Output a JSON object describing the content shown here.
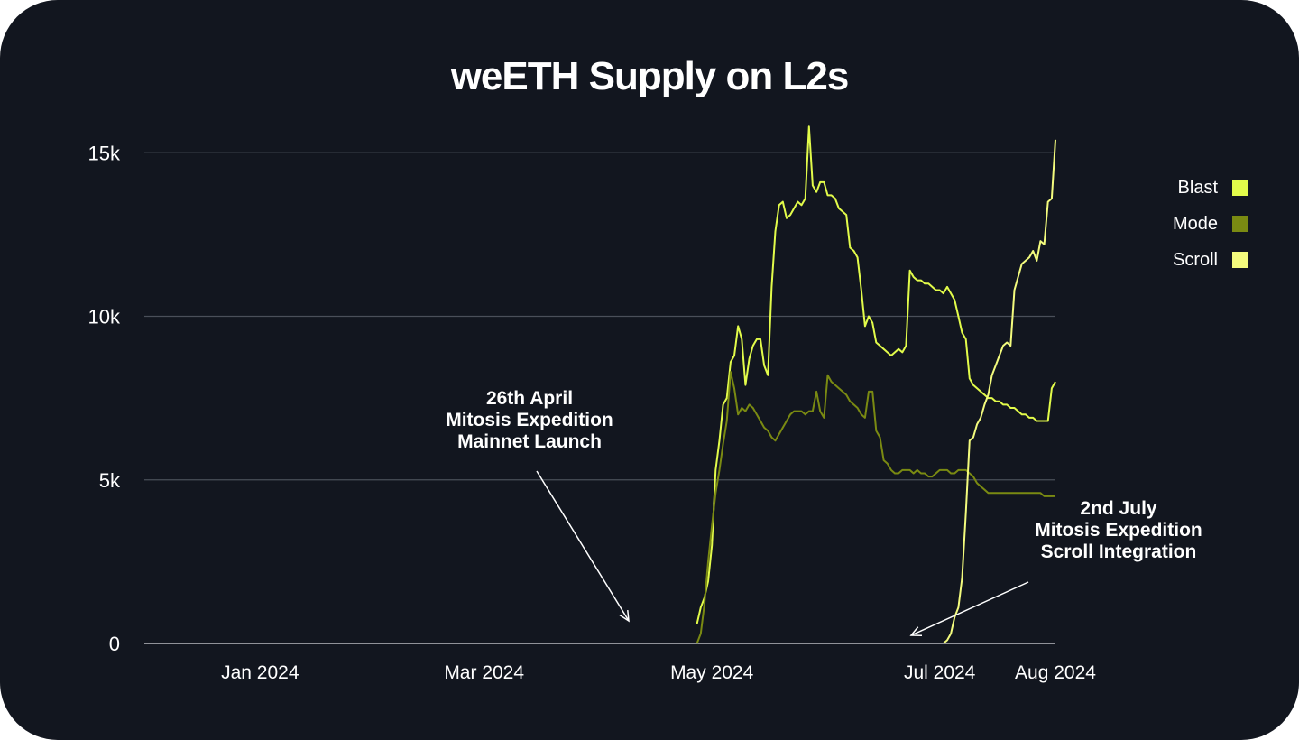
{
  "chart_data": {
    "type": "line",
    "title": "weETH Supply on L2s",
    "xlabel": "",
    "ylabel": "",
    "x_ticks": [
      "Jan 2024",
      "Mar 2024",
      "May 2024",
      "Jul 2024",
      "Aug 2024"
    ],
    "x_tick_dates": [
      "2024-01-01",
      "2024-03-01",
      "2024-05-01",
      "2024-07-01",
      "2024-08-01"
    ],
    "xlim": [
      "2023-12-01",
      "2024-08-01"
    ],
    "y_ticks": [
      0,
      5000,
      10000,
      15000
    ],
    "y_tick_labels": [
      "0",
      "5k",
      "10k",
      "15k"
    ],
    "ylim": [
      0,
      16000
    ],
    "grid": true,
    "legend_position": "top-right",
    "series": [
      {
        "name": "Blast",
        "color": "#e2fb4a",
        "x": [
          "2024-04-27",
          "2024-04-28",
          "2024-04-29",
          "2024-04-30",
          "2024-05-01",
          "2024-05-02",
          "2024-05-03",
          "2024-05-04",
          "2024-05-05",
          "2024-05-06",
          "2024-05-07",
          "2024-05-08",
          "2024-05-09",
          "2024-05-10",
          "2024-05-11",
          "2024-05-12",
          "2024-05-13",
          "2024-05-14",
          "2024-05-15",
          "2024-05-16",
          "2024-05-17",
          "2024-05-18",
          "2024-05-19",
          "2024-05-20",
          "2024-05-21",
          "2024-05-22",
          "2024-05-23",
          "2024-05-24",
          "2024-05-25",
          "2024-05-26",
          "2024-05-27",
          "2024-05-28",
          "2024-05-29",
          "2024-05-30",
          "2024-05-31",
          "2024-06-01",
          "2024-06-02",
          "2024-06-03",
          "2024-06-04",
          "2024-06-05",
          "2024-06-06",
          "2024-06-07",
          "2024-06-08",
          "2024-06-09",
          "2024-06-10",
          "2024-06-11",
          "2024-06-12",
          "2024-06-13",
          "2024-06-14",
          "2024-06-15",
          "2024-06-16",
          "2024-06-17",
          "2024-06-18",
          "2024-06-19",
          "2024-06-20",
          "2024-06-21",
          "2024-06-22",
          "2024-06-23",
          "2024-06-24",
          "2024-06-25",
          "2024-06-26",
          "2024-06-27",
          "2024-06-28",
          "2024-06-29",
          "2024-06-30",
          "2024-07-01",
          "2024-07-02",
          "2024-07-03",
          "2024-07-04",
          "2024-07-05",
          "2024-07-06",
          "2024-07-07",
          "2024-07-08",
          "2024-07-09",
          "2024-07-10",
          "2024-07-11",
          "2024-07-12",
          "2024-07-13",
          "2024-07-14",
          "2024-07-15",
          "2024-07-16",
          "2024-07-17",
          "2024-07-18",
          "2024-07-19",
          "2024-07-20",
          "2024-07-21",
          "2024-07-22",
          "2024-07-23",
          "2024-07-24",
          "2024-07-25",
          "2024-07-26",
          "2024-07-27",
          "2024-07-28",
          "2024-07-29",
          "2024-07-30",
          "2024-07-31",
          "2024-08-01"
        ],
        "values": [
          600,
          1100,
          1400,
          1900,
          3000,
          5300,
          6200,
          7300,
          7500,
          8600,
          8800,
          9700,
          9300,
          7900,
          8700,
          9100,
          9300,
          9300,
          8500,
          8200,
          10900,
          12600,
          13400,
          13500,
          13000,
          13100,
          13300,
          13500,
          13400,
          13600,
          15800,
          14000,
          13800,
          14100,
          14100,
          13700,
          13700,
          13600,
          13300,
          13200,
          13100,
          12100,
          12000,
          11800,
          10800,
          9700,
          10000,
          9800,
          9200,
          9100,
          9000,
          8900,
          8800,
          8900,
          9000,
          8900,
          9100,
          11400,
          11200,
          11100,
          11100,
          11000,
          11000,
          10900,
          10800,
          10800,
          10700,
          10900,
          10700,
          10500,
          10000,
          9500,
          9300,
          8100,
          7900,
          7800,
          7700,
          7600,
          7500,
          7500,
          7400,
          7400,
          7300,
          7300,
          7200,
          7200,
          7100,
          7000,
          7000,
          6900,
          6900,
          6800,
          6800,
          6800,
          6800,
          7800,
          8000
        ]
      },
      {
        "name": "Mode",
        "color": "#7a8a12",
        "x": [
          "2024-04-27",
          "2024-04-28",
          "2024-04-29",
          "2024-04-30",
          "2024-05-01",
          "2024-05-02",
          "2024-05-03",
          "2024-05-04",
          "2024-05-05",
          "2024-05-06",
          "2024-05-07",
          "2024-05-08",
          "2024-05-09",
          "2024-05-10",
          "2024-05-11",
          "2024-05-12",
          "2024-05-13",
          "2024-05-14",
          "2024-05-15",
          "2024-05-16",
          "2024-05-17",
          "2024-05-18",
          "2024-05-19",
          "2024-05-20",
          "2024-05-21",
          "2024-05-22",
          "2024-05-23",
          "2024-05-24",
          "2024-05-25",
          "2024-05-26",
          "2024-05-27",
          "2024-05-28",
          "2024-05-29",
          "2024-05-30",
          "2024-05-31",
          "2024-06-01",
          "2024-06-02",
          "2024-06-03",
          "2024-06-04",
          "2024-06-05",
          "2024-06-06",
          "2024-06-07",
          "2024-06-08",
          "2024-06-09",
          "2024-06-10",
          "2024-06-11",
          "2024-06-12",
          "2024-06-13",
          "2024-06-14",
          "2024-06-15",
          "2024-06-16",
          "2024-06-17",
          "2024-06-18",
          "2024-06-19",
          "2024-06-20",
          "2024-06-21",
          "2024-06-22",
          "2024-06-23",
          "2024-06-24",
          "2024-06-25",
          "2024-06-26",
          "2024-06-27",
          "2024-06-28",
          "2024-06-29",
          "2024-06-30",
          "2024-07-01",
          "2024-07-02",
          "2024-07-03",
          "2024-07-04",
          "2024-07-05",
          "2024-07-06",
          "2024-07-07",
          "2024-07-08",
          "2024-07-09",
          "2024-07-10",
          "2024-07-11",
          "2024-07-12",
          "2024-07-13",
          "2024-07-14",
          "2024-07-15",
          "2024-07-16",
          "2024-07-17",
          "2024-07-18",
          "2024-07-19",
          "2024-07-20",
          "2024-07-21",
          "2024-07-22",
          "2024-07-23",
          "2024-07-24",
          "2024-07-25",
          "2024-07-26",
          "2024-07-27",
          "2024-07-28",
          "2024-07-29",
          "2024-07-30",
          "2024-07-31",
          "2024-08-01"
        ],
        "values": [
          0,
          300,
          1200,
          2500,
          3600,
          4600,
          5300,
          6100,
          6800,
          8300,
          7800,
          7000,
          7200,
          7100,
          7300,
          7200,
          7000,
          6800,
          6600,
          6500,
          6300,
          6200,
          6400,
          6600,
          6800,
          7000,
          7100,
          7100,
          7100,
          7000,
          7100,
          7100,
          7700,
          7100,
          6900,
          8200,
          8000,
          7900,
          7800,
          7700,
          7600,
          7400,
          7300,
          7200,
          7000,
          6900,
          7700,
          7700,
          6500,
          6300,
          5600,
          5500,
          5300,
          5200,
          5200,
          5300,
          5300,
          5300,
          5200,
          5300,
          5200,
          5200,
          5100,
          5100,
          5200,
          5300,
          5300,
          5300,
          5200,
          5200,
          5300,
          5300,
          5300,
          5200,
          5100,
          4900,
          4800,
          4700,
          4600,
          4600,
          4600,
          4600,
          4600,
          4600,
          4600,
          4600,
          4600,
          4600,
          4600,
          4600,
          4600,
          4600,
          4600,
          4500,
          4500,
          4500,
          4500
        ]
      },
      {
        "name": "Scroll",
        "color": "#f3fb7d",
        "x": [
          "2024-07-02",
          "2024-07-03",
          "2024-07-04",
          "2024-07-05",
          "2024-07-06",
          "2024-07-07",
          "2024-07-08",
          "2024-07-09",
          "2024-07-10",
          "2024-07-11",
          "2024-07-12",
          "2024-07-13",
          "2024-07-14",
          "2024-07-15",
          "2024-07-16",
          "2024-07-17",
          "2024-07-18",
          "2024-07-19",
          "2024-07-20",
          "2024-07-21",
          "2024-07-22",
          "2024-07-23",
          "2024-07-24",
          "2024-07-25",
          "2024-07-26",
          "2024-07-27",
          "2024-07-28",
          "2024-07-29",
          "2024-07-30",
          "2024-07-31",
          "2024-08-01"
        ],
        "values": [
          0,
          100,
          300,
          800,
          1100,
          2000,
          4000,
          6200,
          6300,
          6700,
          6900,
          7300,
          7600,
          8200,
          8500,
          8800,
          9100,
          9200,
          9100,
          10800,
          11200,
          11600,
          11700,
          11800,
          12000,
          11700,
          12300,
          12200,
          13500,
          13600,
          15400
        ]
      }
    ],
    "annotations": [
      {
        "lines": [
          "26th April",
          "Mitosis Expedition",
          "Mainnet Launch"
        ],
        "target": "2024-04-26"
      },
      {
        "lines": [
          "2nd July",
          "Mitosis Expedition",
          "Scroll Integration"
        ],
        "target": "2024-07-02"
      }
    ]
  }
}
